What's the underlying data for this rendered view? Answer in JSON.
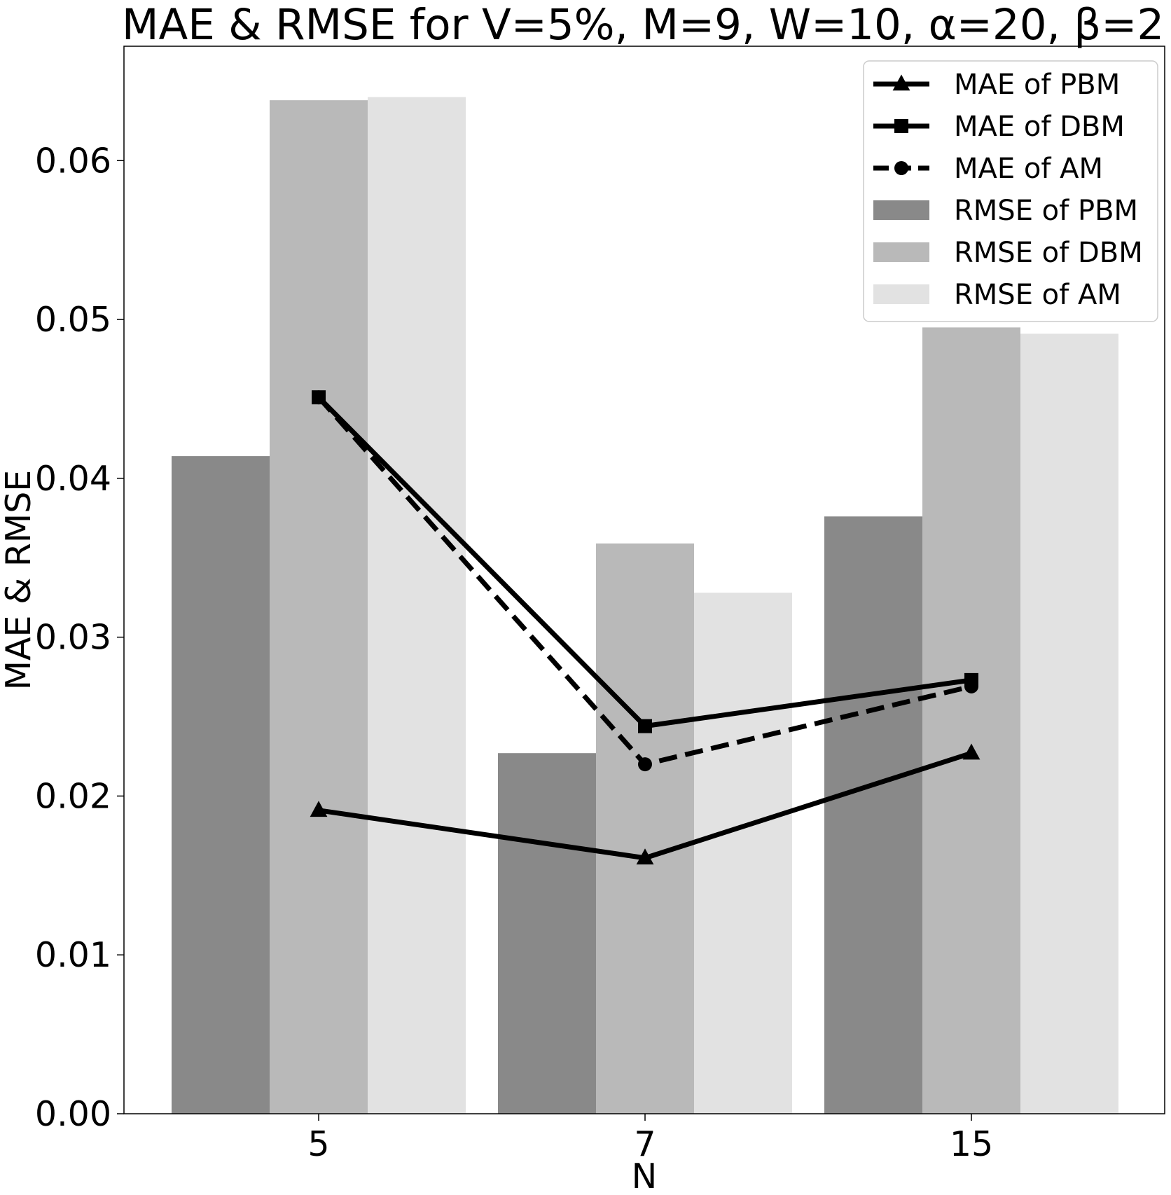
{
  "chart_data": {
    "type": "bar",
    "title": "MAE & RMSE for V=5%, M=9, W=10, α=20, β=2",
    "xlabel": "N",
    "ylabel": "MAE & RMSE",
    "categories": [
      "5",
      "7",
      "15"
    ],
    "ylim": [
      0,
      0.0672
    ],
    "yticks": [
      0.0,
      0.01,
      0.02,
      0.03,
      0.04,
      0.05,
      0.06
    ],
    "ytick_labels": [
      "0.00",
      "0.01",
      "0.02",
      "0.03",
      "0.04",
      "0.05",
      "0.06"
    ],
    "grid": false,
    "legend_position": "top-right",
    "bar_series": [
      {
        "name": "RMSE of PBM",
        "values": [
          0.0414,
          0.0227,
          0.0376
        ],
        "color": "#898989"
      },
      {
        "name": "RMSE of DBM",
        "values": [
          0.0638,
          0.0359,
          0.0495
        ],
        "color": "#b9b9b9"
      },
      {
        "name": "RMSE of AM",
        "values": [
          0.064,
          0.0328,
          0.0491
        ],
        "color": "#e2e2e2"
      }
    ],
    "line_series": [
      {
        "name": "MAE of PBM",
        "values": [
          0.0191,
          0.0161,
          0.0227
        ],
        "marker": "triangle",
        "dashed": false,
        "color": "#000000"
      },
      {
        "name": "MAE of DBM",
        "values": [
          0.0451,
          0.0244,
          0.0273
        ],
        "marker": "square",
        "dashed": false,
        "color": "#000000"
      },
      {
        "name": "MAE of AM",
        "values": [
          0.0451,
          0.022,
          0.0269
        ],
        "marker": "circle",
        "dashed": true,
        "color": "#000000"
      }
    ],
    "legend": [
      "MAE of PBM",
      "MAE of DBM",
      "MAE of AM",
      "RMSE of PBM",
      "RMSE of DBM",
      "RMSE of AM"
    ]
  }
}
